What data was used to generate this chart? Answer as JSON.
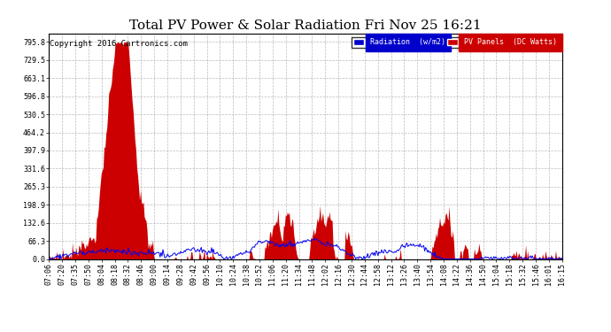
{
  "title": "Total PV Power & Solar Radiation Fri Nov 25 16:21",
  "copyright": "Copyright 2016 Cartronics.com",
  "background_color": "#ffffff",
  "plot_bg_color": "#ffffff",
  "grid_color": "#aaaaaa",
  "y_ticks": [
    0.0,
    66.3,
    132.6,
    198.9,
    265.3,
    331.6,
    397.9,
    464.2,
    530.5,
    596.8,
    663.1,
    729.5,
    795.8
  ],
  "y_max": 828,
  "x_tick_labels": [
    "07:06",
    "07:20",
    "07:35",
    "07:50",
    "08:04",
    "08:18",
    "08:32",
    "08:46",
    "09:00",
    "09:14",
    "09:28",
    "09:42",
    "09:56",
    "10:10",
    "10:24",
    "10:38",
    "10:52",
    "11:06",
    "11:20",
    "11:34",
    "11:48",
    "12:02",
    "12:16",
    "12:30",
    "12:44",
    "12:58",
    "13:12",
    "13:26",
    "13:40",
    "13:54",
    "14:08",
    "14:22",
    "14:36",
    "14:50",
    "15:04",
    "15:18",
    "15:32",
    "15:46",
    "16:01",
    "16:15"
  ],
  "legend_radiation_bg": "#0000cc",
  "legend_pv_bg": "#cc0000",
  "fill_color": "#cc0000",
  "line_color_blue": "#0000ee",
  "title_fontsize": 11,
  "tick_fontsize": 6,
  "copyright_fontsize": 6.5
}
